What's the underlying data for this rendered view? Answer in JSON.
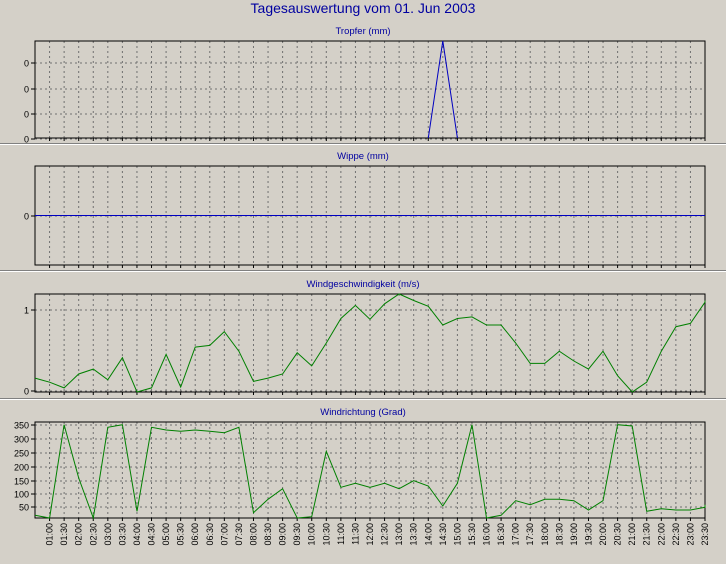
{
  "page": {
    "title": "Tagesauswertung vom 01. Jun 2003",
    "colors": {
      "background": "#d4d0c8",
      "title": "#0000a0",
      "grid": "#707070",
      "frame": "#000000"
    }
  },
  "chart_data": [
    {
      "type": "line",
      "title": "Tropfer (mm)",
      "color": "#0000c0",
      "ytick_labels": [
        "0",
        "0",
        "0",
        "0"
      ],
      "ylim": [
        0,
        1
      ],
      "grid": true,
      "x": [
        "14:00",
        "14:30",
        "15:00"
      ],
      "series": [
        {
          "values": [
            0,
            1,
            0
          ]
        }
      ]
    },
    {
      "type": "line",
      "title": "Wippe (mm)",
      "color": "#0000c0",
      "ytick_labels": [
        "0"
      ],
      "ylim": [
        -1,
        1
      ],
      "grid": true,
      "x": [
        "00:30",
        "23:59"
      ],
      "series": [
        {
          "values": [
            0,
            0
          ]
        }
      ]
    },
    {
      "type": "line",
      "title": "Windgeschwindigkeit (m/s)",
      "color": "#008000",
      "ytick_labels": [
        "1",
        "0"
      ],
      "ylim": [
        0,
        1.2
      ],
      "grid": true,
      "x": [
        "00:30",
        "01:00",
        "01:30",
        "02:00",
        "02:30",
        "03:00",
        "03:30",
        "04:00",
        "04:30",
        "05:00",
        "05:30",
        "06:00",
        "06:30",
        "07:00",
        "07:30",
        "08:00",
        "08:30",
        "09:00",
        "09:30",
        "10:00",
        "10:30",
        "11:00",
        "11:30",
        "12:00",
        "12:30",
        "13:00",
        "13:30",
        "14:00",
        "14:30",
        "15:00",
        "15:30",
        "16:00",
        "16:30",
        "17:00",
        "17:30",
        "18:00",
        "18:30",
        "19:00",
        "19:30",
        "20:00",
        "20:30",
        "21:00",
        "21:30",
        "22:00",
        "22:30",
        "23:00",
        "23:30",
        "23:59"
      ],
      "series": [
        {
          "values": [
            0.17,
            0.12,
            0.05,
            0.22,
            0.28,
            0.15,
            0.42,
            0.0,
            0.05,
            0.46,
            0.06,
            0.55,
            0.57,
            0.74,
            0.5,
            0.13,
            0.17,
            0.22,
            0.48,
            0.32,
            0.6,
            0.9,
            1.06,
            0.89,
            1.08,
            1.2,
            1.12,
            1.05,
            0.82,
            0.9,
            0.92,
            0.82,
            0.82,
            0.6,
            0.35,
            0.35,
            0.5,
            0.38,
            0.28,
            0.5,
            0.2,
            0.0,
            0.12,
            0.5,
            0.8,
            0.84,
            1.1,
            1.12
          ]
        }
      ]
    },
    {
      "type": "line",
      "title": "Windrichtung (Grad)",
      "color": "#008000",
      "ytick_labels": [
        "350",
        "300",
        "250",
        "200",
        "150",
        "100",
        "50"
      ],
      "ylim": [
        0,
        360
      ],
      "grid": true,
      "x": [
        "00:30",
        "01:00",
        "01:30",
        "02:00",
        "02:30",
        "03:00",
        "03:30",
        "04:00",
        "04:30",
        "05:00",
        "05:30",
        "06:00",
        "06:30",
        "07:00",
        "07:30",
        "08:00",
        "08:30",
        "09:00",
        "09:30",
        "10:00",
        "10:30",
        "11:00",
        "11:30",
        "12:00",
        "12:30",
        "13:00",
        "13:30",
        "14:00",
        "14:30",
        "15:00",
        "15:30",
        "16:00",
        "16:30",
        "17:00",
        "17:30",
        "18:00",
        "18:30",
        "19:00",
        "19:30",
        "20:00",
        "20:30",
        "21:00",
        "21:30",
        "22:00",
        "22:30",
        "23:00",
        "23:30",
        "23:59"
      ],
      "series": [
        {
          "values": [
            10,
            0,
            350,
            150,
            0,
            340,
            350,
            25,
            340,
            330,
            325,
            330,
            325,
            320,
            340,
            20,
            70,
            110,
            0,
            5,
            250,
            115,
            130,
            115,
            130,
            110,
            140,
            120,
            45,
            130,
            350,
            0,
            10,
            65,
            50,
            70,
            70,
            65,
            30,
            65,
            350,
            345,
            25,
            35,
            30,
            30,
            40,
            50
          ]
        }
      ]
    }
  ],
  "x_axis": {
    "tick_labels": [
      "01:00",
      "01:30",
      "02:00",
      "02:30",
      "03:00",
      "03:30",
      "04:00",
      "04:30",
      "05:00",
      "05:30",
      "06:00",
      "06:30",
      "07:00",
      "07:30",
      "08:00",
      "08:30",
      "09:00",
      "09:30",
      "10:00",
      "10:30",
      "11:00",
      "11:30",
      "12:00",
      "12:30",
      "13:00",
      "13:30",
      "14:00",
      "14:30",
      "15:00",
      "15:30",
      "16:00",
      "16:30",
      "17:00",
      "17:30",
      "18:00",
      "18:30",
      "19:00",
      "19:30",
      "20:00",
      "20:30",
      "21:00",
      "21:30",
      "22:00",
      "22:30",
      "23:00",
      "23:30"
    ]
  }
}
